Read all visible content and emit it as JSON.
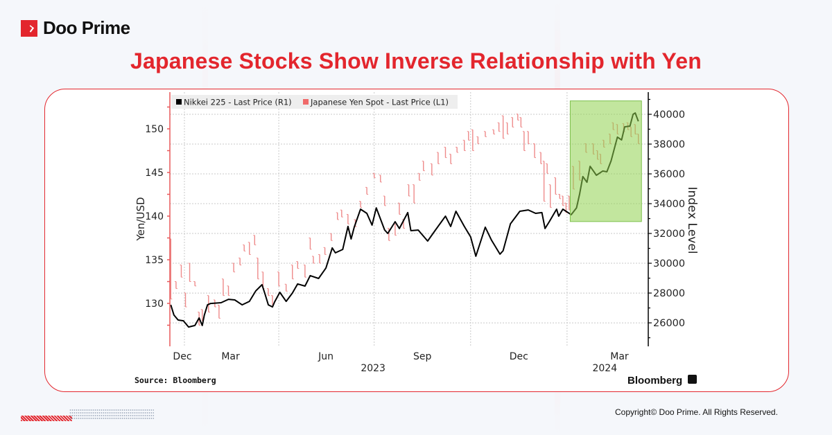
{
  "brand": {
    "name": "Doo Prime",
    "accent": "#e3262d"
  },
  "page": {
    "title": "Japanese Stocks Show Inverse Relationship with Yen",
    "source": "Source: Bloomberg",
    "watermark": "Bloomberg",
    "copyright": "Copyright© Doo Prime. All Rights Reserved."
  },
  "chart_data": {
    "type": "line",
    "legend": {
      "placement": "top-left",
      "entries": [
        "Nikkei 225 - Last Price (R1)",
        "Japanese Yen Spot - Last Price (L1)"
      ]
    },
    "grid": true,
    "x_axis": {
      "type": "date",
      "range": [
        "2022-12-18",
        "2024-03-18"
      ],
      "gridlines": [
        "2023-01-01",
        "2023-04-01",
        "2023-07-01",
        "2023-10-01",
        "2024-01-01"
      ],
      "tick_labels": [
        {
          "label": "Dec",
          "at": "2022-12-30"
        },
        {
          "label": "Mar",
          "at": "2023-02-14"
        },
        {
          "label": "Jun",
          "at": "2023-05-16"
        },
        {
          "label": "Sep",
          "at": "2023-08-16"
        },
        {
          "label": "Dec",
          "at": "2023-11-16"
        },
        {
          "label": "Mar",
          "at": "2024-02-20"
        }
      ],
      "year_labels": [
        {
          "label": "2023",
          "at": "2023-06-30"
        },
        {
          "label": "2024",
          "at": "2024-02-06"
        }
      ]
    },
    "y_left": {
      "label": "Yen/USD",
      "range": [
        125,
        154
      ],
      "ticks": [
        130,
        135,
        140,
        145,
        150
      ],
      "minor_step": 2.5,
      "color": "#e8585a"
    },
    "y_right": {
      "label": "Index Level",
      "range": [
        24400,
        41400
      ],
      "ticks": [
        26000,
        28000,
        30000,
        32000,
        34000,
        36000,
        38000,
        40000
      ],
      "minor_step": 1000,
      "color": "#000000"
    },
    "highlight": {
      "x": [
        "2024-01-04",
        "2024-03-12"
      ],
      "y_right": [
        32800,
        40900
      ],
      "color": "#8fd14f"
    },
    "series": [
      {
        "name": "Nikkei 225 - Last Price (R1)",
        "axis": "right",
        "style": "line",
        "color": "#000000",
        "points": [
          [
            "2022-12-19",
            27210
          ],
          [
            "2022-12-22",
            26520
          ],
          [
            "2022-12-26",
            26190
          ],
          [
            "2022-12-31",
            26140
          ],
          [
            "2023-01-05",
            25720
          ],
          [
            "2023-01-11",
            25820
          ],
          [
            "2023-01-15",
            26330
          ],
          [
            "2023-01-18",
            25820
          ],
          [
            "2023-01-20",
            26520
          ],
          [
            "2023-01-23",
            27210
          ],
          [
            "2023-01-26",
            27300
          ],
          [
            "2023-02-05",
            27350
          ],
          [
            "2023-02-12",
            27580
          ],
          [
            "2023-02-18",
            27540
          ],
          [
            "2023-02-25",
            27210
          ],
          [
            "2023-03-04",
            27440
          ],
          [
            "2023-03-10",
            28140
          ],
          [
            "2023-03-16",
            28560
          ],
          [
            "2023-03-19",
            27910
          ],
          [
            "2023-03-22",
            27210
          ],
          [
            "2023-03-26",
            27070
          ],
          [
            "2023-03-28",
            27400
          ],
          [
            "2023-04-02",
            28050
          ],
          [
            "2023-04-08",
            27440
          ],
          [
            "2023-04-14",
            28000
          ],
          [
            "2023-04-19",
            28610
          ],
          [
            "2023-04-26",
            28470
          ],
          [
            "2023-05-01",
            29170
          ],
          [
            "2023-05-09",
            28980
          ],
          [
            "2023-05-16",
            29680
          ],
          [
            "2023-05-22",
            31030
          ],
          [
            "2023-05-25",
            30700
          ],
          [
            "2023-06-01",
            30930
          ],
          [
            "2023-06-06",
            32470
          ],
          [
            "2023-06-09",
            31630
          ],
          [
            "2023-06-12",
            32420
          ],
          [
            "2023-06-18",
            33630
          ],
          [
            "2023-06-24",
            33350
          ],
          [
            "2023-06-29",
            32560
          ],
          [
            "2023-07-03",
            33720
          ],
          [
            "2023-07-11",
            32230
          ],
          [
            "2023-07-14",
            32000
          ],
          [
            "2023-07-21",
            32790
          ],
          [
            "2023-07-25",
            32330
          ],
          [
            "2023-08-02",
            33400
          ],
          [
            "2023-08-05",
            32190
          ],
          [
            "2023-08-12",
            32230
          ],
          [
            "2023-08-21",
            31490
          ],
          [
            "2023-08-28",
            32190
          ],
          [
            "2023-09-07",
            33160
          ],
          [
            "2023-09-12",
            32470
          ],
          [
            "2023-09-17",
            33490
          ],
          [
            "2023-09-25",
            32470
          ],
          [
            "2023-10-01",
            31770
          ],
          [
            "2023-10-06",
            30470
          ],
          [
            "2023-10-15",
            32420
          ],
          [
            "2023-10-21",
            31540
          ],
          [
            "2023-10-29",
            30610
          ],
          [
            "2023-11-01",
            30840
          ],
          [
            "2023-11-08",
            32650
          ],
          [
            "2023-11-17",
            33490
          ],
          [
            "2023-11-25",
            33580
          ],
          [
            "2023-12-02",
            33350
          ],
          [
            "2023-12-08",
            33400
          ],
          [
            "2023-12-11",
            32330
          ],
          [
            "2023-12-15",
            32790
          ],
          [
            "2023-12-22",
            33630
          ],
          [
            "2023-12-24",
            33160
          ],
          [
            "2023-12-28",
            33630
          ],
          [
            "2024-01-05",
            33260
          ],
          [
            "2024-01-10",
            33720
          ],
          [
            "2024-01-13",
            34650
          ],
          [
            "2024-01-16",
            35820
          ],
          [
            "2024-01-20",
            35440
          ],
          [
            "2024-01-23",
            36510
          ],
          [
            "2024-01-29",
            35910
          ],
          [
            "2024-02-04",
            36190
          ],
          [
            "2024-02-08",
            36140
          ],
          [
            "2024-02-12",
            36880
          ],
          [
            "2024-02-18",
            38470
          ],
          [
            "2024-02-22",
            38280
          ],
          [
            "2024-02-25",
            39160
          ],
          [
            "2024-03-01",
            39210
          ],
          [
            "2024-03-04",
            40000
          ],
          [
            "2024-03-06",
            40090
          ],
          [
            "2024-03-09",
            39530
          ]
        ]
      },
      {
        "name": "Japanese Yen Spot - Last Price (L1)",
        "axis": "left",
        "style": "high-low-bars",
        "color": "#e8585a",
        "points": [
          [
            "2022-12-19",
            137.4,
            130.5
          ],
          [
            "2022-12-24",
            132.5,
            131.7
          ],
          [
            "2022-12-29",
            134.4,
            133.0
          ],
          [
            "2023-01-02",
            131.2,
            129.6
          ],
          [
            "2023-01-06",
            134.6,
            132.5
          ],
          [
            "2023-01-11",
            132.5,
            132.0
          ],
          [
            "2023-01-15",
            129.0,
            127.5
          ],
          [
            "2023-01-18",
            129.3,
            128.0
          ],
          [
            "2023-01-24",
            130.9,
            129.0
          ],
          [
            "2023-01-30",
            130.4,
            129.6
          ],
          [
            "2023-02-03",
            129.8,
            128.3
          ],
          [
            "2023-02-07",
            132.8,
            130.9
          ],
          [
            "2023-02-12",
            132.0,
            130.9
          ],
          [
            "2023-02-17",
            134.6,
            133.6
          ],
          [
            "2023-02-23",
            135.2,
            134.4
          ],
          [
            "2023-02-27",
            136.7,
            136.0
          ],
          [
            "2023-03-04",
            137.0,
            135.6
          ],
          [
            "2023-03-09",
            137.8,
            136.7
          ],
          [
            "2023-03-12",
            135.2,
            132.8
          ],
          [
            "2023-03-17",
            133.6,
            131.7
          ],
          [
            "2023-03-22",
            131.7,
            130.9
          ],
          [
            "2023-03-26",
            130.9,
            129.8
          ],
          [
            "2023-04-01",
            133.6,
            132.0
          ],
          [
            "2023-04-08",
            132.2,
            131.4
          ],
          [
            "2023-04-14",
            134.4,
            132.8
          ],
          [
            "2023-04-19",
            134.8,
            134.0
          ],
          [
            "2023-04-26",
            134.4,
            133.0
          ],
          [
            "2023-05-01",
            137.5,
            136.2
          ],
          [
            "2023-05-04",
            135.4,
            134.6
          ],
          [
            "2023-05-10",
            135.6,
            134.6
          ],
          [
            "2023-05-15",
            136.4,
            135.6
          ],
          [
            "2023-05-21",
            138.0,
            137.2
          ],
          [
            "2023-05-27",
            140.4,
            139.6
          ],
          [
            "2023-05-31",
            140.7,
            139.9
          ],
          [
            "2023-06-06",
            140.2,
            139.1
          ],
          [
            "2023-06-13",
            139.6,
            138.8
          ],
          [
            "2023-06-18",
            141.7,
            141.0
          ],
          [
            "2023-06-24",
            143.3,
            142.5
          ],
          [
            "2023-07-01",
            144.9,
            144.4
          ],
          [
            "2023-07-07",
            144.7,
            143.9
          ],
          [
            "2023-07-11",
            142.3,
            141.2
          ],
          [
            "2023-07-15",
            138.6,
            137.2
          ],
          [
            "2023-07-21",
            139.1,
            137.8
          ],
          [
            "2023-07-25",
            141.5,
            140.2
          ],
          [
            "2023-07-29",
            139.6,
            138.6
          ],
          [
            "2023-08-03",
            143.6,
            142.3
          ],
          [
            "2023-08-08",
            143.6,
            141.5
          ],
          [
            "2023-08-13",
            144.9,
            144.1
          ],
          [
            "2023-08-17",
            146.3,
            145.2
          ],
          [
            "2023-08-25",
            146.0,
            144.7
          ],
          [
            "2023-08-31",
            147.3,
            146.0
          ],
          [
            "2023-09-07",
            147.9,
            146.7
          ],
          [
            "2023-09-12",
            147.1,
            146.0
          ],
          [
            "2023-09-18",
            147.9,
            147.3
          ],
          [
            "2023-09-25",
            148.7,
            147.5
          ],
          [
            "2023-09-29",
            149.7,
            148.7
          ],
          [
            "2023-10-03",
            149.9,
            147.5
          ],
          [
            "2023-10-08",
            149.1,
            148.3
          ],
          [
            "2023-10-15",
            149.7,
            149.1
          ],
          [
            "2023-10-23",
            149.9,
            149.4
          ],
          [
            "2023-10-28",
            150.7,
            149.7
          ],
          [
            "2023-11-01",
            151.5,
            148.9
          ],
          [
            "2023-11-05",
            150.7,
            149.4
          ],
          [
            "2023-11-10",
            151.3,
            150.2
          ],
          [
            "2023-11-15",
            151.7,
            151.0
          ],
          [
            "2023-11-18",
            151.3,
            150.2
          ],
          [
            "2023-11-21",
            149.7,
            147.5
          ],
          [
            "2023-11-25",
            149.7,
            148.3
          ],
          [
            "2023-12-01",
            148.3,
            146.7
          ],
          [
            "2023-12-07",
            147.3,
            146.0
          ],
          [
            "2023-12-10",
            146.3,
            141.7
          ],
          [
            "2023-12-13",
            146.0,
            144.9
          ],
          [
            "2023-12-16",
            143.6,
            141.0
          ],
          [
            "2023-12-21",
            144.4,
            142.5
          ],
          [
            "2023-12-25",
            142.5,
            142.0
          ],
          [
            "2023-12-28",
            142.3,
            141.2
          ],
          [
            "2023-12-31",
            141.5,
            140.4
          ],
          [
            "2024-01-03",
            142.3,
            140.7
          ],
          [
            "2024-01-07",
            145.7,
            143.1
          ],
          [
            "2024-01-13",
            146.3,
            144.1
          ],
          [
            "2024-01-19",
            148.3,
            147.3
          ],
          [
            "2024-01-26",
            148.3,
            147.1
          ],
          [
            "2024-01-30",
            147.5,
            146.5
          ],
          [
            "2024-02-02",
            147.1,
            146.0
          ],
          [
            "2024-02-05",
            148.7,
            147.9
          ],
          [
            "2024-02-11",
            149.4,
            148.3
          ],
          [
            "2024-02-14",
            150.7,
            149.9
          ],
          [
            "2024-02-18",
            150.5,
            149.4
          ],
          [
            "2024-02-24",
            150.6,
            149.7
          ],
          [
            "2024-02-28",
            150.7,
            149.9
          ],
          [
            "2024-03-02",
            150.2,
            149.1
          ],
          [
            "2024-03-06",
            150.5,
            149.4
          ],
          [
            "2024-03-09",
            149.4,
            148.3
          ]
        ]
      }
    ]
  }
}
